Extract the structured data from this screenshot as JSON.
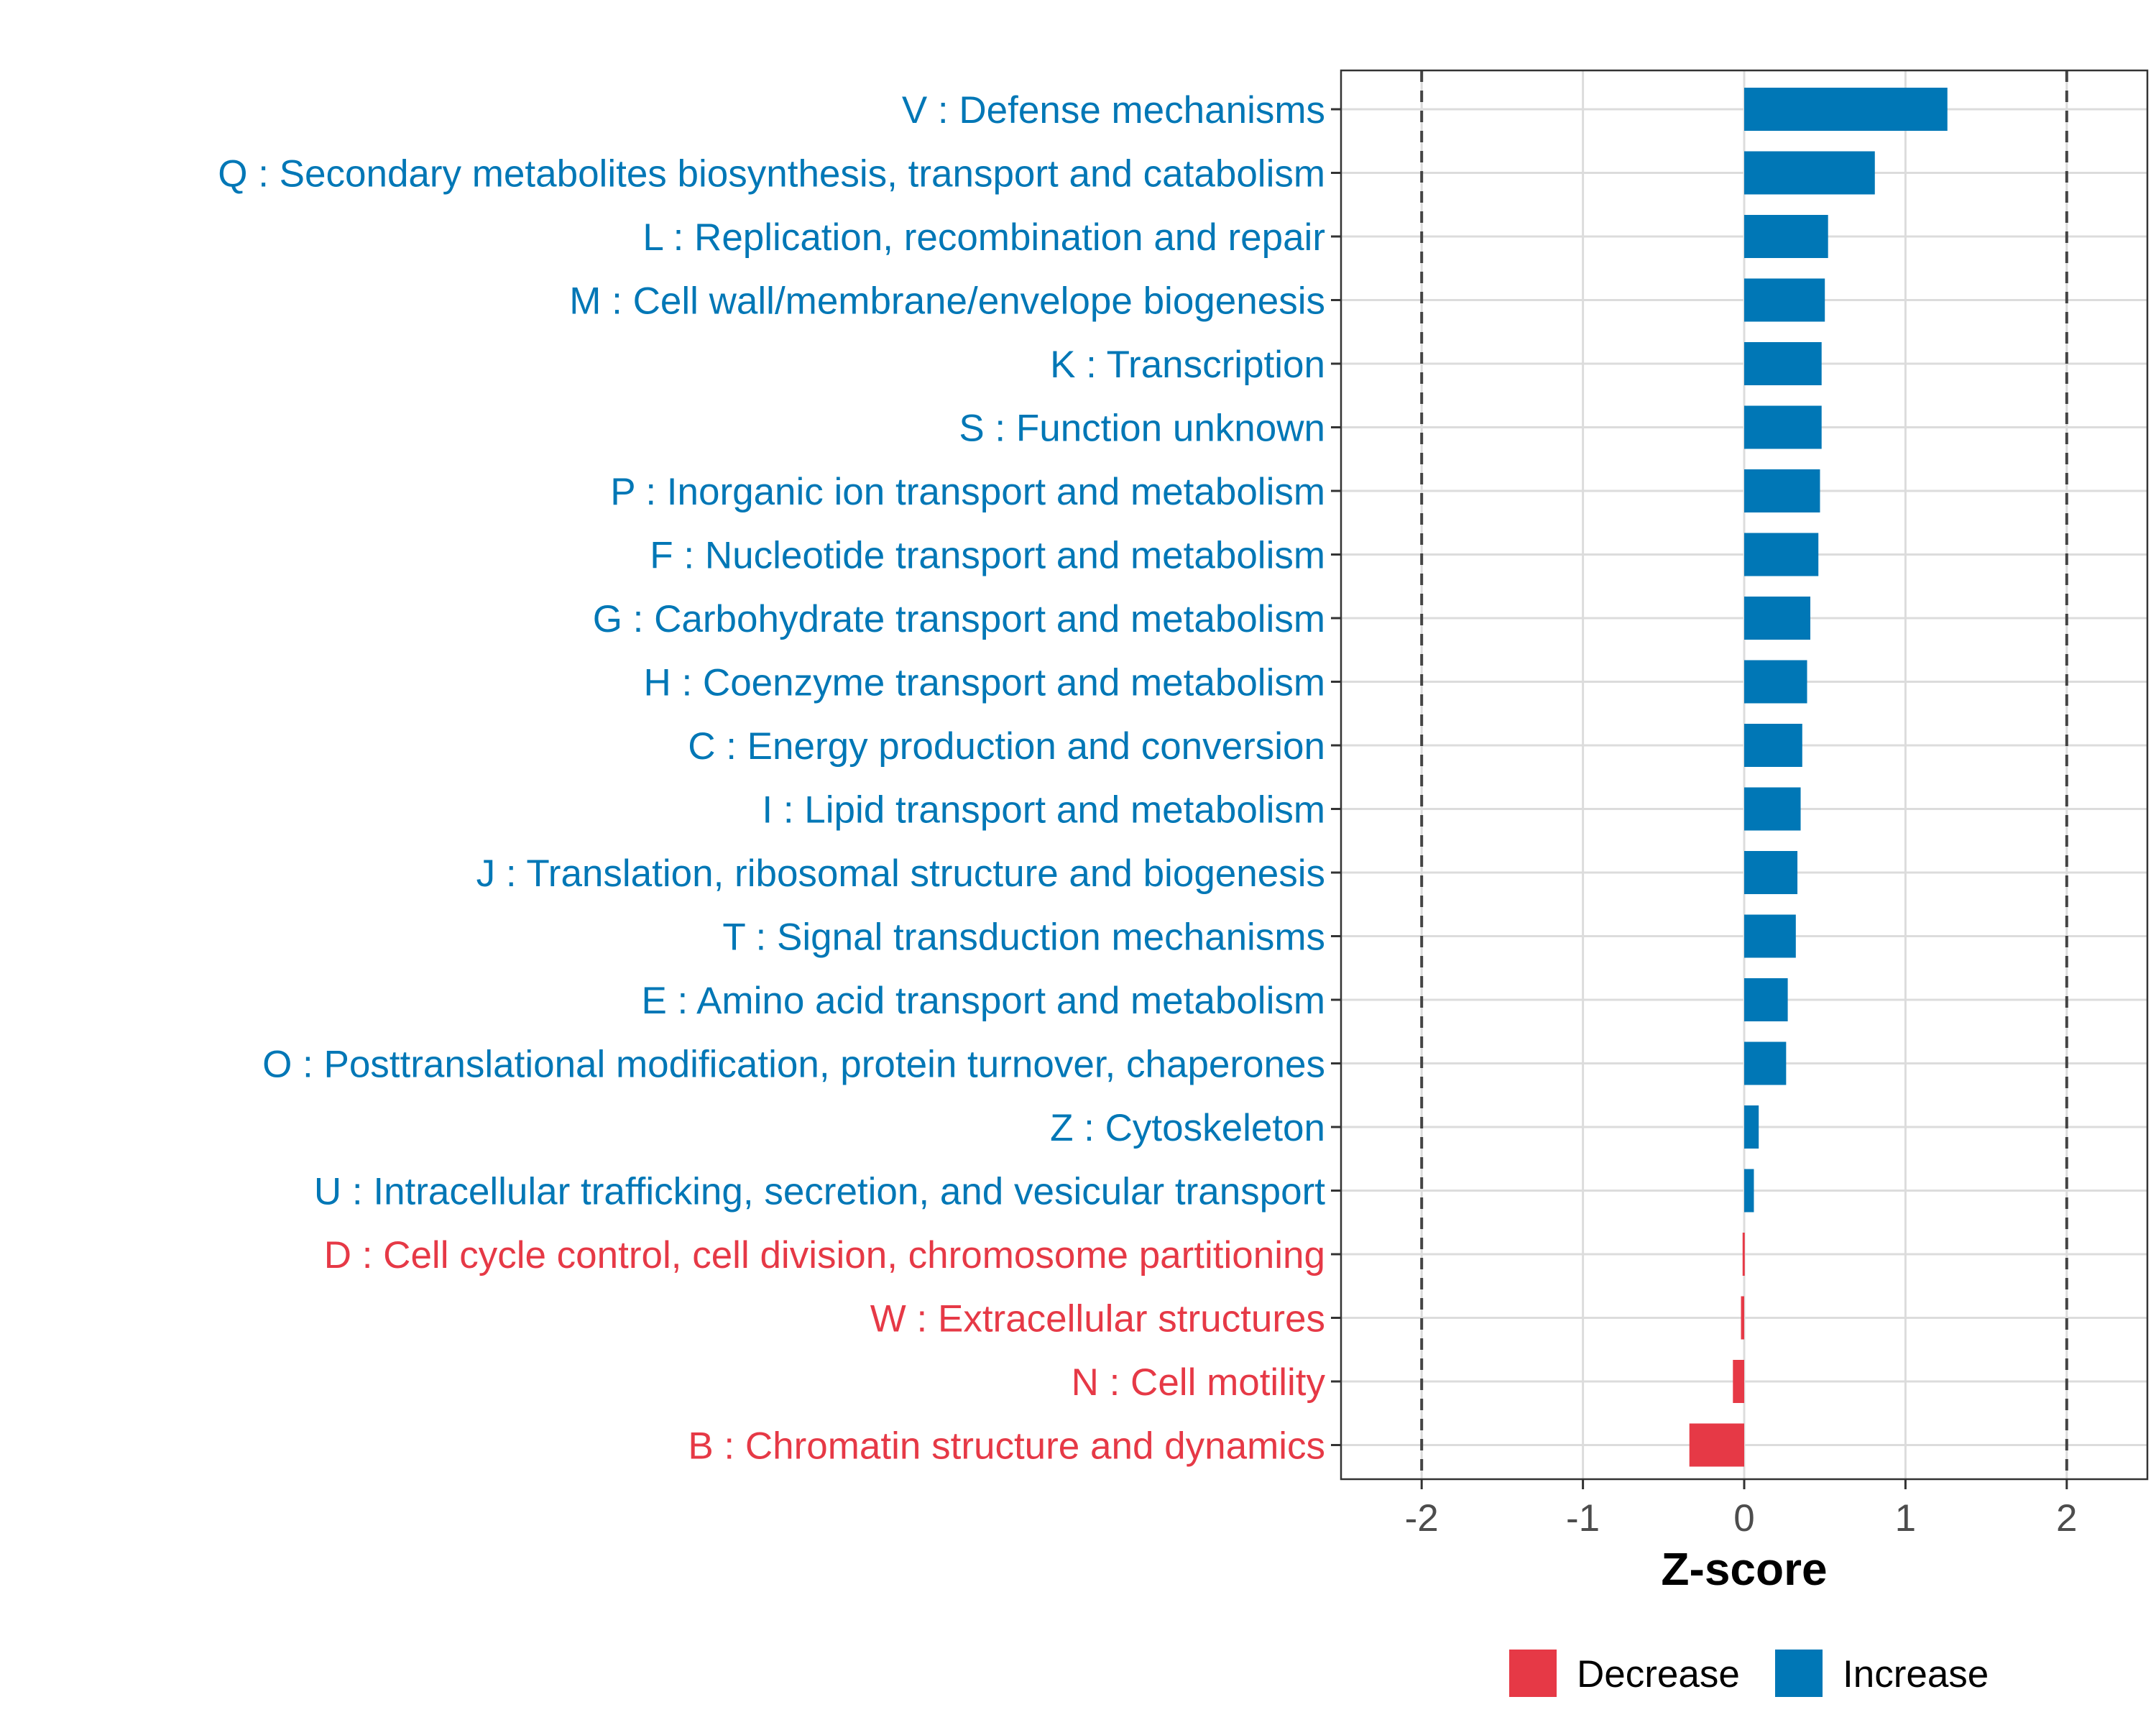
{
  "chart_data": {
    "type": "bar",
    "orientation": "horizontal",
    "xlabel": "Z-score",
    "ylabel": "",
    "xlim": [
      -2.5,
      2.5
    ],
    "xticks": [
      -2,
      -1,
      0,
      1,
      2
    ],
    "xtick_labels": [
      "-2",
      "-1",
      "0",
      "1",
      "2"
    ],
    "reference_lines": [
      -2,
      2
    ],
    "grid": true,
    "legend_position": "bottom",
    "colors": {
      "Decrease": "#E63946",
      "Increase": "#0077B6"
    },
    "legend": [
      {
        "label": "Decrease",
        "color": "#E63946"
      },
      {
        "label": "Increase",
        "color": "#0077B6"
      }
    ],
    "categories": [
      "V : Defense mechanisms",
      "Q : Secondary metabolites biosynthesis, transport and catabolism",
      "L : Replication, recombination and repair",
      "M : Cell wall/membrane/envelope biogenesis",
      "K : Transcription",
      "S : Function unknown",
      "P : Inorganic ion transport and metabolism",
      "F : Nucleotide transport and metabolism",
      "G : Carbohydrate transport and metabolism",
      "H : Coenzyme transport and metabolism",
      "C : Energy production and conversion",
      "I : Lipid transport and metabolism",
      "J : Translation, ribosomal structure and biogenesis",
      "T : Signal transduction mechanisms",
      "E : Amino acid transport and metabolism",
      "O : Posttranslational modification, protein turnover, chaperones",
      "Z : Cytoskeleton",
      "U : Intracellular trafficking, secretion, and vesicular transport",
      "D : Cell cycle control, cell division, chromosome partitioning",
      "W : Extracellular structures",
      "N : Cell motility",
      "B : Chromatin structure and dynamics"
    ],
    "values": [
      1.26,
      0.81,
      0.52,
      0.5,
      0.48,
      0.48,
      0.47,
      0.46,
      0.41,
      0.39,
      0.36,
      0.35,
      0.33,
      0.32,
      0.27,
      0.26,
      0.09,
      0.06,
      -0.01,
      -0.02,
      -0.07,
      -0.34
    ],
    "direction": [
      "Increase",
      "Increase",
      "Increase",
      "Increase",
      "Increase",
      "Increase",
      "Increase",
      "Increase",
      "Increase",
      "Increase",
      "Increase",
      "Increase",
      "Increase",
      "Increase",
      "Increase",
      "Increase",
      "Increase",
      "Increase",
      "Decrease",
      "Decrease",
      "Decrease",
      "Decrease"
    ]
  }
}
